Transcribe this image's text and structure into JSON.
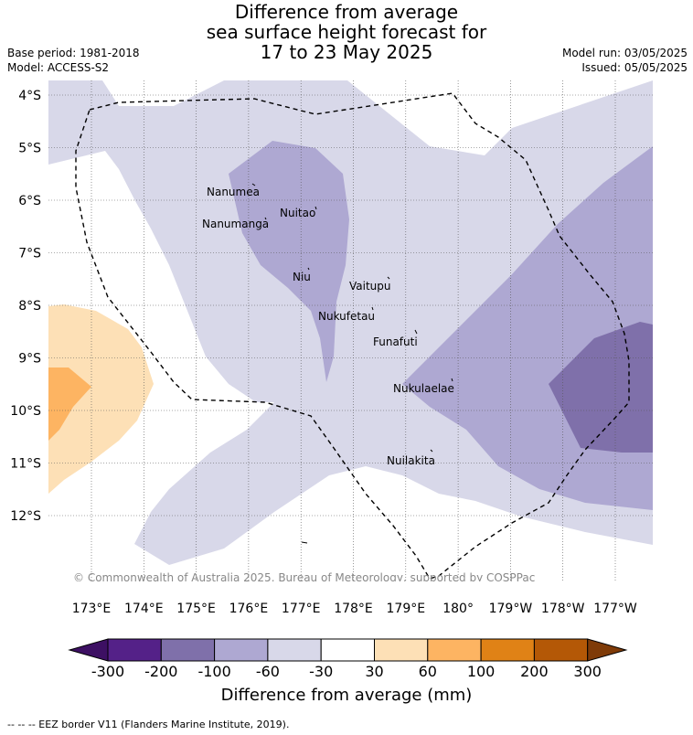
{
  "title": {
    "line1": "Difference from average",
    "line2": "sea surface height forecast for",
    "line3": "17 to 23 May 2025"
  },
  "meta": {
    "base_period": "Base period: 1981-2018",
    "model": "Model: ACCESS-S2",
    "model_run": "Model run: 03/05/2025",
    "issued": "Issued: 05/05/2025"
  },
  "map": {
    "lat_ticks": [
      "4°S",
      "5°S",
      "6°S",
      "7°S",
      "8°S",
      "9°S",
      "10°S",
      "11°S",
      "12°S"
    ],
    "lon_ticks": [
      "173°E",
      "174°E",
      "175°E",
      "176°E",
      "177°E",
      "178°E",
      "179°E",
      "180°",
      "179°W",
      "178°W",
      "177°W"
    ],
    "places": [
      {
        "name": "Nanumea"
      },
      {
        "name": "Nuitao"
      },
      {
        "name": "Nanumanga"
      },
      {
        "name": "Niu"
      },
      {
        "name": "Vaitupu"
      },
      {
        "name": "Nukufetau"
      },
      {
        "name": "Funafuti"
      },
      {
        "name": "Nukulaelae"
      },
      {
        "name": "Nuilakita"
      }
    ],
    "copyright": "© Commonwealth of Australia 2025, Bureau of Meteorology, supported by COSPPac"
  },
  "colorbar": {
    "ticks": [
      "-300",
      "-200",
      "-100",
      "-60",
      "-30",
      "30",
      "60",
      "100",
      "200",
      "300"
    ],
    "colors": [
      "#3d1063",
      "#542188",
      "#7f70aa",
      "#aea8d2",
      "#d8d8e9",
      "#ffffff",
      "#fde0b6",
      "#fdb462",
      "#e08216",
      "#b45806",
      "#7f3b08"
    ],
    "title": "Difference from average (mm)"
  },
  "footer": "-- -- -- EEZ border V11 (Flanders Marine Institute, 2019)."
}
